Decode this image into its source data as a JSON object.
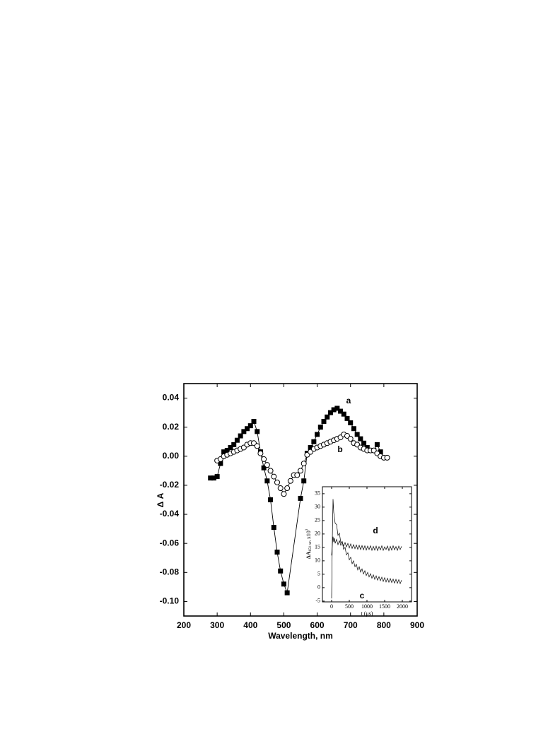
{
  "chart_data": [
    {
      "type": "line",
      "x_label": "Wavelength, nm",
      "y_label": "Δ A",
      "xlim": [
        200,
        900
      ],
      "ylim": [
        -0.11,
        0.05
      ],
      "xticks": [
        200,
        300,
        400,
        500,
        600,
        700,
        800,
        900
      ],
      "yticks": [
        0.04,
        0.02,
        {
          "value": 0,
          "label": "0.00"
        },
        -0.02,
        -0.04,
        -0.06,
        -0.08,
        {
          "value": -0.1,
          "label": "-0.10"
        }
      ],
      "series": [
        {
          "name": "a",
          "color": "#000000",
          "marker": "square-filled",
          "x": [
            280,
            290,
            300,
            310,
            320,
            330,
            340,
            350,
            360,
            370,
            380,
            390,
            400,
            410,
            420,
            430,
            440,
            450,
            460,
            470,
            480,
            490,
            500,
            510,
            550,
            560,
            570,
            580,
            590,
            600,
            610,
            620,
            630,
            640,
            650,
            660,
            670,
            680,
            690,
            700,
            710,
            720,
            730,
            740,
            750,
            760,
            770,
            780,
            790
          ],
          "values": [
            -0.015,
            -0.015,
            -0.014,
            -0.005,
            0.003,
            0.004,
            0.006,
            0.008,
            0.011,
            0.014,
            0.017,
            0.019,
            0.021,
            0.024,
            0.017,
            0.003,
            -0.008,
            -0.017,
            -0.03,
            -0.049,
            -0.066,
            -0.079,
            -0.088,
            -0.094,
            -0.029,
            -0.017,
            0.002,
            0.006,
            0.01,
            0.015,
            0.02,
            0.024,
            0.027,
            0.03,
            0.032,
            0.033,
            0.031,
            0.029,
            0.026,
            0.023,
            0.019,
            0.015,
            0.012,
            0.009,
            0.006,
            0.004,
            0.004,
            0.008,
            0.003
          ]
        },
        {
          "name": "b",
          "color": "#000000",
          "marker": "circle-open",
          "x": [
            300,
            310,
            320,
            330,
            340,
            350,
            360,
            370,
            380,
            390,
            400,
            410,
            420,
            430,
            440,
            450,
            460,
            470,
            480,
            490,
            500,
            510,
            520,
            530,
            540,
            550,
            560,
            570,
            580,
            590,
            600,
            610,
            620,
            630,
            640,
            650,
            660,
            670,
            680,
            690,
            700,
            710,
            720,
            730,
            740,
            750,
            760,
            770,
            780,
            790,
            800,
            810
          ],
          "values": [
            -0.003,
            -0.002,
            0,
            0.001,
            0.002,
            0.003,
            0.004,
            0.005,
            0.006,
            0.008,
            0.009,
            0.009,
            0.007,
            0.002,
            -0.002,
            -0.006,
            -0.01,
            -0.014,
            -0.018,
            -0.022,
            -0.026,
            -0.022,
            -0.017,
            -0.013,
            -0.013,
            -0.01,
            -0.005,
            0.001,
            0.003,
            0.005,
            0.006,
            0.007,
            0.008,
            0.009,
            0.01,
            0.011,
            0.012,
            0.013,
            0.015,
            0.014,
            0.012,
            0.009,
            0.008,
            0.006,
            0.005,
            0.004,
            0.004,
            0.004,
            0.002,
            0,
            -0.001,
            -0.001
          ]
        }
      ]
    },
    {
      "type": "line",
      "x_label": "t (μs)",
      "y_label": {
        "main": "ΔA",
        "sub": "650 nm",
        "suffix": "x10",
        "sup": "3"
      },
      "xlim": [
        -260,
        2260
      ],
      "ylim": [
        -5.3,
        37.6
      ],
      "xticks": [
        0,
        500,
        1000,
        1500,
        2000
      ],
      "yticks": [
        -5,
        0,
        5,
        10,
        15,
        20,
        25,
        30,
        35
      ],
      "series": [
        {
          "name": "c",
          "color": "#000000",
          "x": [
            0,
            20,
            40,
            60,
            80,
            100,
            140,
            180,
            220,
            260,
            300,
            340,
            380,
            420,
            460,
            500,
            540,
            580,
            620,
            660,
            700,
            740,
            780,
            820,
            860,
            900,
            940,
            980,
            1020,
            1060,
            1100,
            1140,
            1180,
            1220,
            1260,
            1300,
            1340,
            1380,
            1420,
            1460,
            1500,
            1540,
            1580,
            1620,
            1660,
            1700,
            1740,
            1780,
            1820,
            1860,
            1900,
            1940,
            1980
          ],
          "values": [
            -4,
            18,
            33,
            28,
            26,
            24,
            23.5,
            19.5,
            20.3,
            16.8,
            17.2,
            14.3,
            15,
            12.2,
            13,
            10.4,
            11.3,
            8.9,
            10,
            7.8,
            8.7,
            6.6,
            7.8,
            5.8,
            7,
            5.1,
            6.3,
            4.5,
            5.7,
            4,
            5.2,
            3.5,
            4.8,
            3.1,
            4.4,
            2.8,
            4.1,
            2.6,
            3.9,
            2.3,
            3.7,
            2.1,
            3.5,
            2,
            3.4,
            1.9,
            3.2,
            1.7,
            3.1,
            1.6,
            3,
            1.5,
            2.8
          ]
        },
        {
          "name": "d",
          "color": "#000000",
          "x": [
            0,
            20,
            40,
            60,
            80,
            100,
            140,
            180,
            220,
            260,
            300,
            340,
            380,
            420,
            460,
            500,
            540,
            580,
            620,
            660,
            700,
            740,
            780,
            820,
            860,
            900,
            940,
            980,
            1020,
            1060,
            1100,
            1140,
            1180,
            1220,
            1260,
            1300,
            1340,
            1380,
            1420,
            1460,
            1500,
            1540,
            1580,
            1620,
            1660,
            1700,
            1740,
            1780,
            1820,
            1860,
            1900,
            1940,
            1980
          ],
          "values": [
            12,
            16,
            19,
            17,
            18.5,
            16.5,
            18,
            16,
            17.5,
            15.8,
            17,
            15.5,
            16.8,
            15.2,
            16.5,
            14.8,
            16.3,
            14.6,
            16,
            14.5,
            15.9,
            14.3,
            15.8,
            14.2,
            15.7,
            14.1,
            15.6,
            14,
            15.5,
            14.2,
            15.6,
            13.9,
            15.4,
            14,
            15.5,
            13.8,
            15.3,
            14.1,
            15.6,
            13.9,
            15.2,
            14.2,
            15.5,
            13.8,
            15.4,
            14,
            15.6,
            14.1,
            15.3,
            13.9,
            15.5,
            14.2,
            15.4
          ]
        }
      ]
    }
  ]
}
